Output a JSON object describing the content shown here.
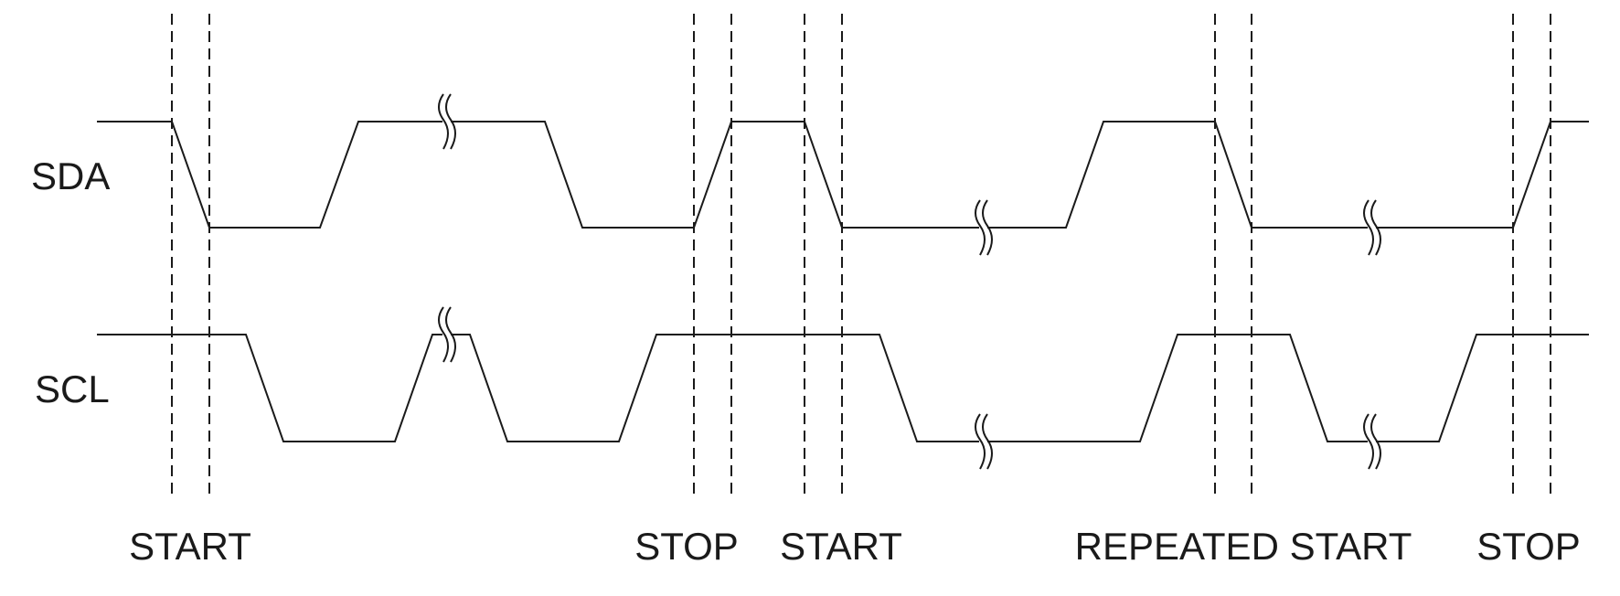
{
  "signals": {
    "sda_label": "SDA",
    "scl_label": "SCL"
  },
  "conditions": {
    "start_1": "START",
    "stop_1": "STOP",
    "start_2": "START",
    "repeated_start": "REPEATED START",
    "stop_2": "STOP"
  },
  "colors": {
    "line": "#1a1a1a",
    "background": "#ffffff"
  }
}
